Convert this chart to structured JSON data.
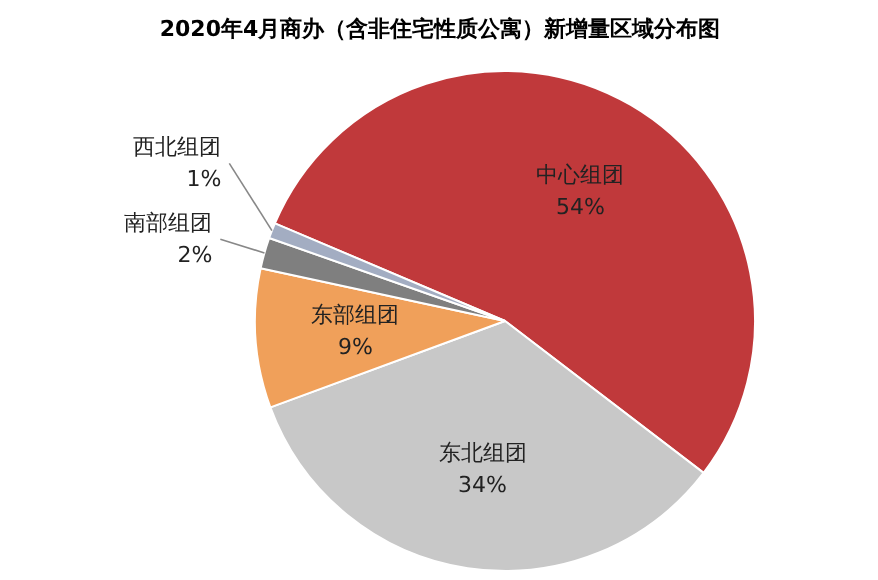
{
  "chart_data": {
    "type": "pie",
    "title": "2020年4月商办（含非住宅性质公寓）新增量区域分布图",
    "categories": [
      "中心组团",
      "东北组团",
      "东部组团",
      "南部组团",
      "西北组团"
    ],
    "values": [
      54,
      34,
      9,
      2,
      1
    ],
    "colors": [
      "#c0393b",
      "#c8c8c8",
      "#f0a05a",
      "#7f7f7f",
      "#a3adc2"
    ],
    "value_labels": [
      "54%",
      "34%",
      "9%",
      "2%",
      "1%"
    ]
  }
}
